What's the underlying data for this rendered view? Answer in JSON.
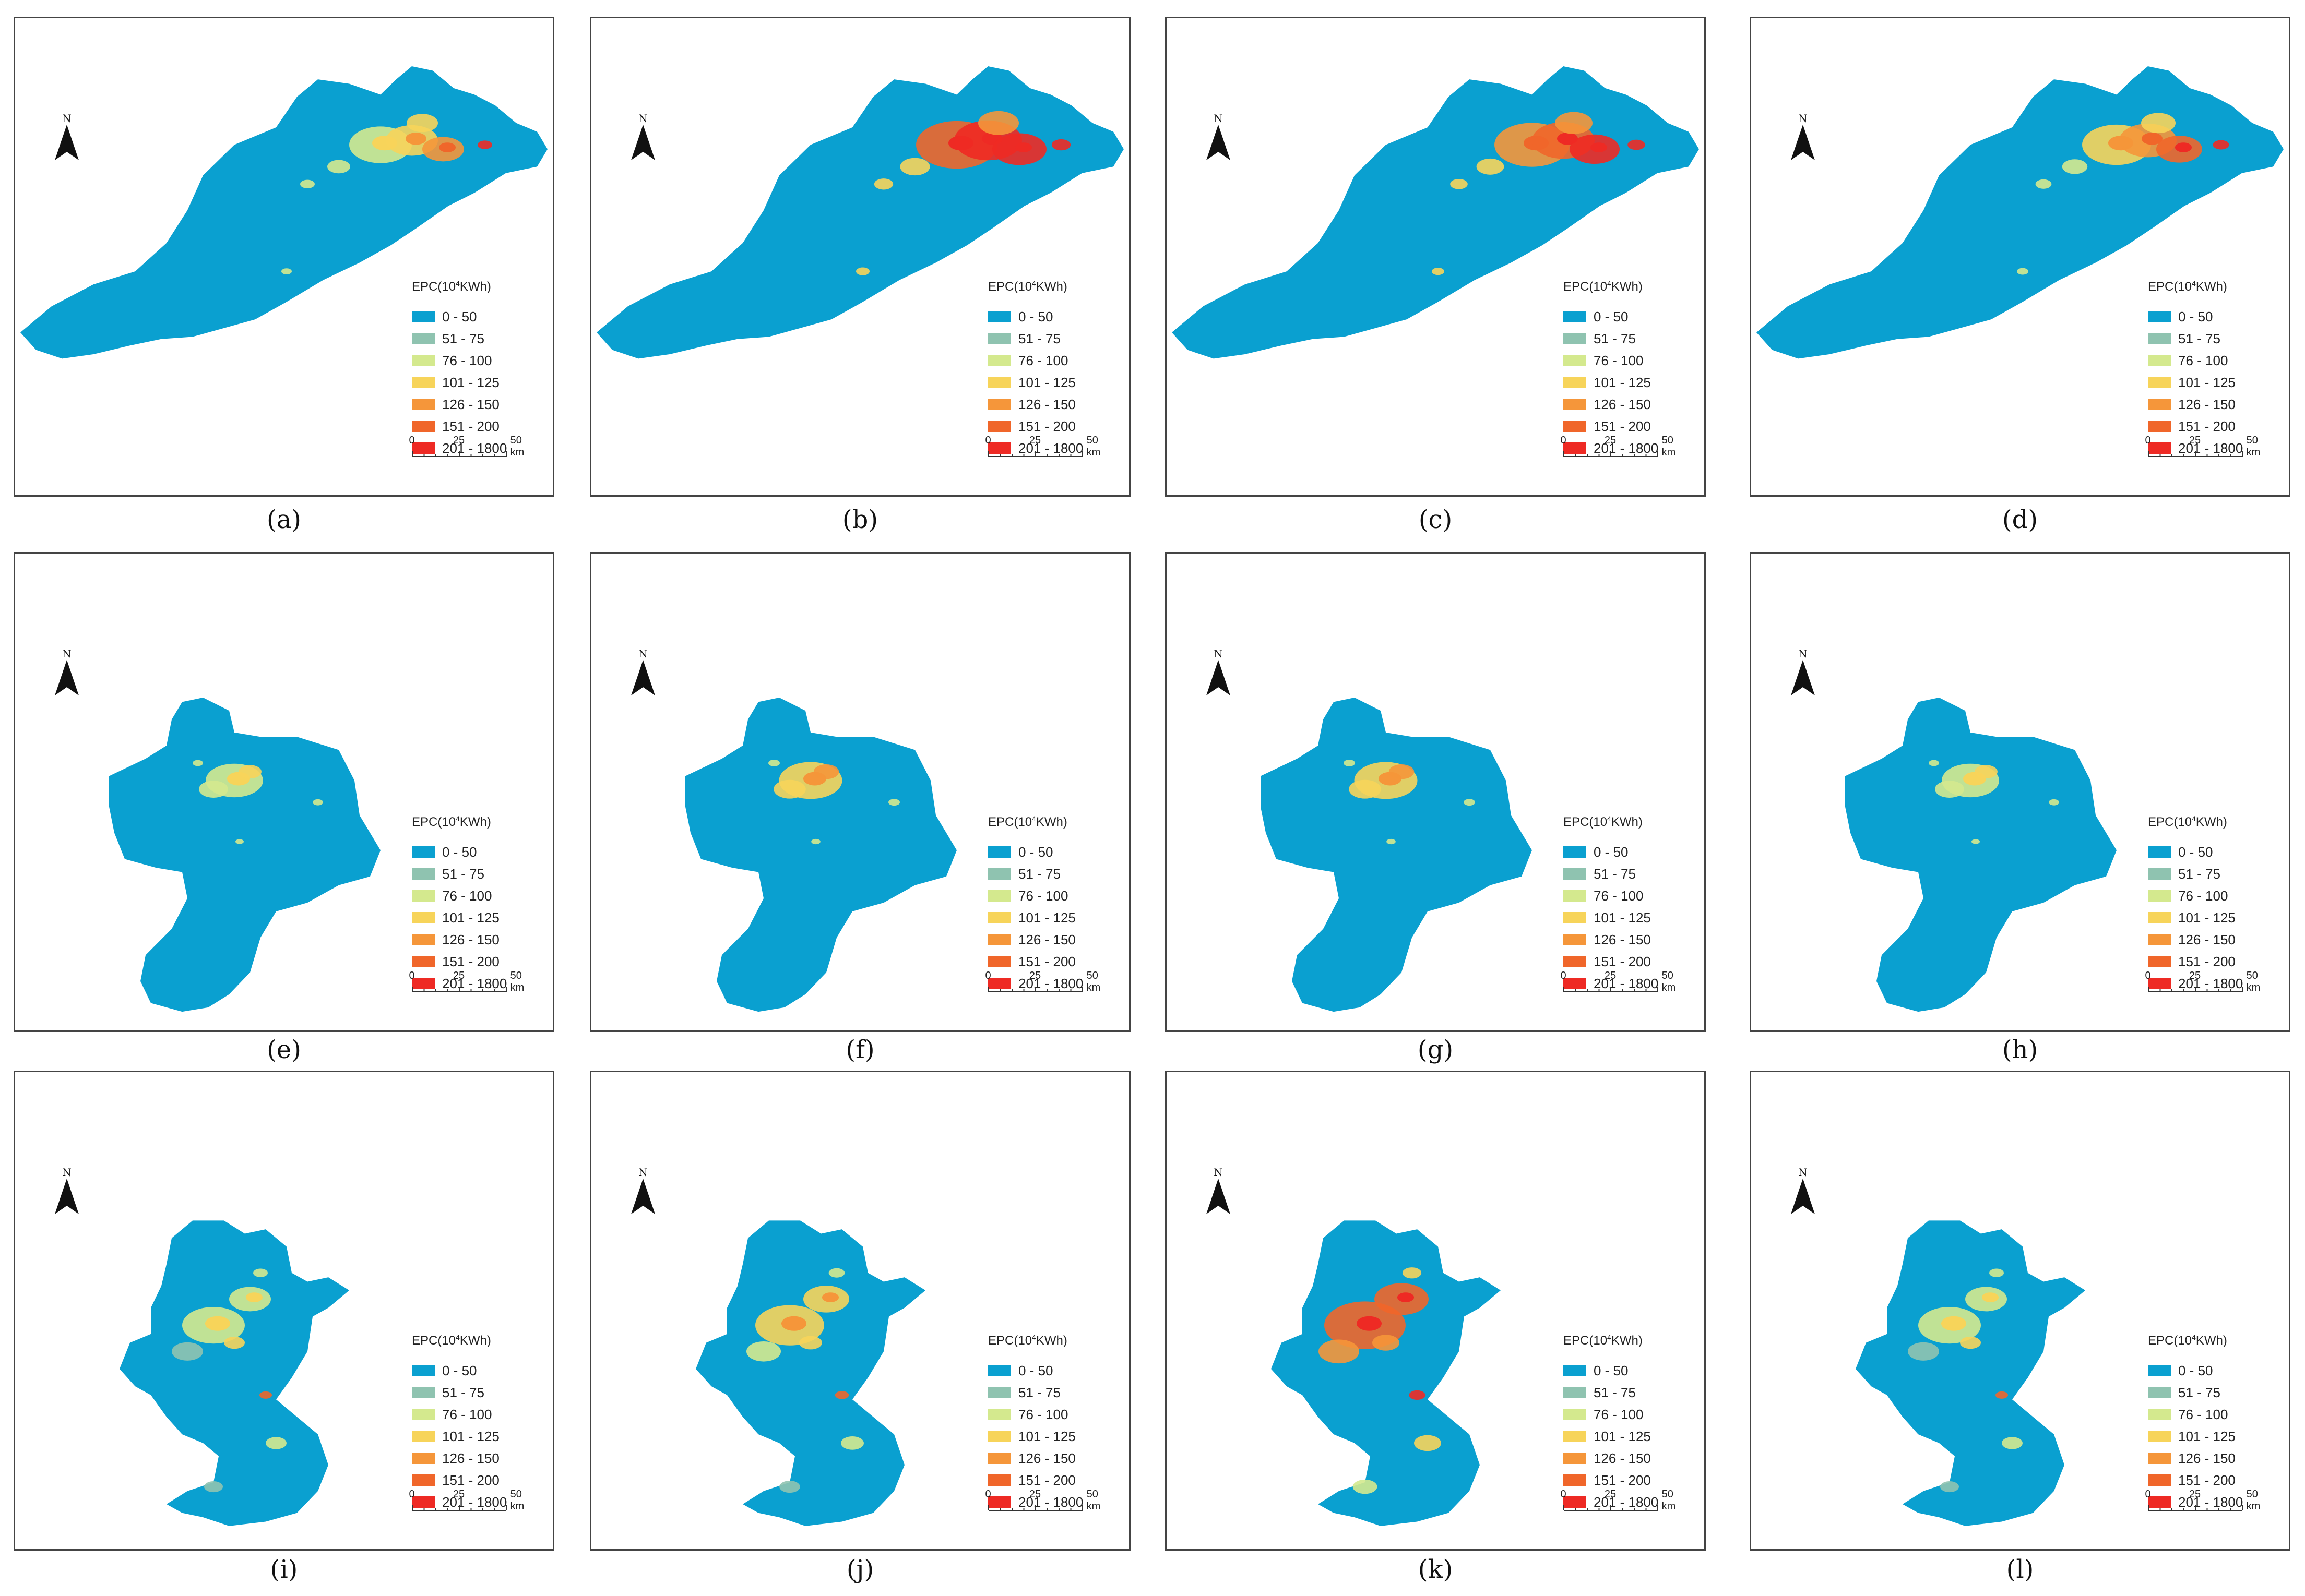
{
  "legend": {
    "title_prefix": "EPC(10",
    "title_exp": "4",
    "title_suffix": "KWh)",
    "classes": [
      {
        "label": "0 - 50",
        "color": "#0aa0d0"
      },
      {
        "label": "51 - 75",
        "color": "#8fc3b0"
      },
      {
        "label": "76 - 100",
        "color": "#d4e98e"
      },
      {
        "label": "101 - 125",
        "color": "#f7d45a"
      },
      {
        "label": "126 - 150",
        "color": "#f5963a"
      },
      {
        "label": "151 - 200",
        "color": "#f0662a"
      },
      {
        "label": "201 - 1800",
        "color": "#ee2a24"
      }
    ]
  },
  "scalebar": {
    "ticks": [
      "0",
      "25",
      "50 km"
    ]
  },
  "north_label": "N",
  "panels": [
    {
      "caption": "(a)"
    },
    {
      "caption": "(b)"
    },
    {
      "caption": "(c)"
    },
    {
      "caption": "(d)"
    },
    {
      "caption": "(e)"
    },
    {
      "caption": "(f)"
    },
    {
      "caption": "(g)"
    },
    {
      "caption": "(h)"
    },
    {
      "caption": "(i)"
    },
    {
      "caption": "(j)"
    },
    {
      "caption": "(k)"
    },
    {
      "caption": "(l)"
    }
  ]
}
